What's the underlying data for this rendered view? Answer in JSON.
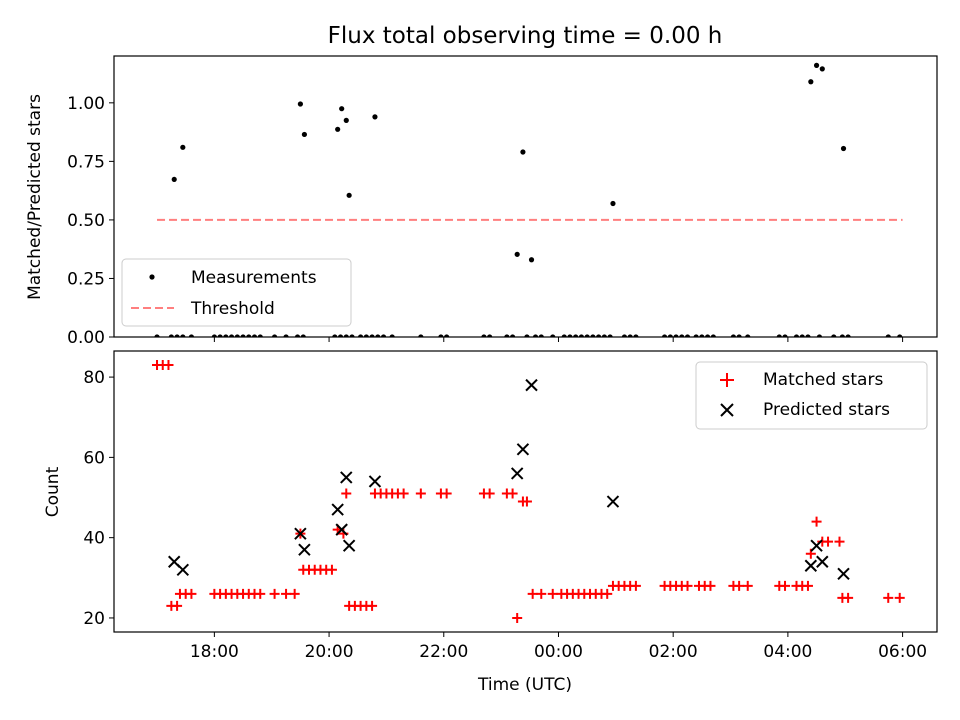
{
  "chart_data": [
    {
      "type": "scatter",
      "title": "Flux total observing time = 0.00 h",
      "xlabel": "",
      "ylabel": "Matched/Predicted stars",
      "x_unit": "hours since 00:00 UTC",
      "xlim": [
        -7.75,
        6.6
      ],
      "ylim": [
        0.0,
        1.2
      ],
      "yticks": [
        0.0,
        0.25,
        0.5,
        0.75,
        1.0
      ],
      "ytick_labels": [
        "0.00",
        "0.25",
        "0.50",
        "0.75",
        "1.00"
      ],
      "xticks": [
        -6,
        -4,
        -2,
        0,
        2,
        4,
        6
      ],
      "legend": {
        "position": "lower-left",
        "entries": [
          {
            "label": "Measurements",
            "marker": "dot",
            "color": "#000000"
          },
          {
            "label": "Threshold",
            "marker": "dashed-line",
            "color": "#ff7f7f"
          }
        ]
      },
      "series": [
        {
          "name": "Measurements",
          "color": "#000000",
          "points": [
            [
              -6.7,
              0.673
            ],
            [
              -6.55,
              0.81
            ],
            [
              -4.5,
              0.995
            ],
            [
              -4.43,
              0.865
            ],
            [
              -3.85,
              0.887
            ],
            [
              -3.78,
              0.975
            ],
            [
              -3.7,
              0.925
            ],
            [
              -3.65,
              0.605
            ],
            [
              -3.2,
              0.94
            ],
            [
              -0.72,
              0.353
            ],
            [
              -0.62,
              0.79
            ],
            [
              -0.47,
              0.33
            ],
            [
              0.95,
              0.57
            ],
            [
              4.4,
              1.09
            ],
            [
              4.5,
              1.16
            ],
            [
              4.6,
              1.145
            ],
            [
              4.97,
              0.805
            ],
            [
              -7.0,
              0
            ],
            [
              -6.75,
              0
            ],
            [
              -6.65,
              0
            ],
            [
              -6.55,
              0
            ],
            [
              -6.4,
              0
            ],
            [
              -6.0,
              0
            ],
            [
              -5.9,
              0
            ],
            [
              -5.8,
              0
            ],
            [
              -5.7,
              0
            ],
            [
              -5.6,
              0
            ],
            [
              -5.5,
              0
            ],
            [
              -5.4,
              0
            ],
            [
              -5.3,
              0
            ],
            [
              -5.2,
              0
            ],
            [
              -4.95,
              0
            ],
            [
              -4.75,
              0
            ],
            [
              -4.55,
              0
            ],
            [
              -4.45,
              0
            ],
            [
              -3.9,
              0
            ],
            [
              -3.8,
              0
            ],
            [
              -3.7,
              0
            ],
            [
              -3.6,
              0
            ],
            [
              -3.45,
              0
            ],
            [
              -3.35,
              0
            ],
            [
              -3.25,
              0
            ],
            [
              -3.15,
              0
            ],
            [
              -3.05,
              0
            ],
            [
              -2.9,
              0
            ],
            [
              -2.4,
              0
            ],
            [
              -2.05,
              0
            ],
            [
              -1.95,
              0
            ],
            [
              -1.3,
              0
            ],
            [
              -1.2,
              0
            ],
            [
              -0.9,
              0
            ],
            [
              -0.8,
              0
            ],
            [
              -0.55,
              0
            ],
            [
              -0.4,
              0
            ],
            [
              -0.3,
              0
            ],
            [
              -0.1,
              0
            ],
            [
              0.1,
              0
            ],
            [
              0.2,
              0
            ],
            [
              0.3,
              0
            ],
            [
              0.4,
              0
            ],
            [
              0.5,
              0
            ],
            [
              0.6,
              0
            ],
            [
              0.7,
              0
            ],
            [
              0.8,
              0
            ],
            [
              0.9,
              0
            ],
            [
              1.15,
              0
            ],
            [
              1.25,
              0
            ],
            [
              1.35,
              0
            ],
            [
              1.85,
              0
            ],
            [
              1.95,
              0
            ],
            [
              2.05,
              0
            ],
            [
              2.15,
              0
            ],
            [
              2.25,
              0
            ],
            [
              2.4,
              0
            ],
            [
              2.5,
              0
            ],
            [
              2.6,
              0
            ],
            [
              2.7,
              0
            ],
            [
              3.05,
              0
            ],
            [
              3.15,
              0
            ],
            [
              3.3,
              0
            ],
            [
              3.85,
              0
            ],
            [
              3.95,
              0
            ],
            [
              4.15,
              0
            ],
            [
              4.25,
              0
            ],
            [
              4.35,
              0
            ],
            [
              4.55,
              0
            ],
            [
              4.8,
              0
            ],
            [
              4.95,
              0
            ],
            [
              5.05,
              0
            ],
            [
              5.75,
              0
            ],
            [
              5.95,
              0
            ]
          ]
        }
      ],
      "threshold": {
        "name": "Threshold",
        "value": 0.5,
        "x_range": [
          -7.0,
          6.0
        ],
        "color": "#ff7f7f",
        "style": "dashed"
      }
    },
    {
      "type": "scatter",
      "title": "",
      "xlabel": "Time (UTC)",
      "ylabel": "Count",
      "x_unit": "hours since 00:00 UTC",
      "xlim": [
        -7.75,
        6.6
      ],
      "ylim": [
        16.5,
        86.5
      ],
      "yticks": [
        20,
        40,
        60,
        80
      ],
      "ytick_labels": [
        "20",
        "40",
        "60",
        "80"
      ],
      "xticks": [
        -6,
        -4,
        -2,
        0,
        2,
        4,
        6
      ],
      "xtick_labels": [
        "18:00",
        "20:00",
        "22:00",
        "00:00",
        "02:00",
        "04:00",
        "06:00"
      ],
      "legend": {
        "position": "top-right",
        "entries": [
          {
            "label": "Matched stars",
            "marker": "+",
            "color": "#ff0000"
          },
          {
            "label": "Predicted stars",
            "marker": "x",
            "color": "#000000"
          }
        ]
      },
      "series": [
        {
          "name": "Matched stars",
          "color": "#ff0000",
          "marker": "+",
          "points": [
            [
              -7.0,
              83
            ],
            [
              -6.9,
              83
            ],
            [
              -6.8,
              83
            ],
            [
              -6.75,
              23
            ],
            [
              -6.65,
              23
            ],
            [
              -6.6,
              26
            ],
            [
              -6.5,
              26
            ],
            [
              -6.4,
              26
            ],
            [
              -6.0,
              26
            ],
            [
              -5.9,
              26
            ],
            [
              -5.8,
              26
            ],
            [
              -5.7,
              26
            ],
            [
              -5.6,
              26
            ],
            [
              -5.5,
              26
            ],
            [
              -5.4,
              26
            ],
            [
              -5.3,
              26
            ],
            [
              -5.2,
              26
            ],
            [
              -4.95,
              26
            ],
            [
              -4.75,
              26
            ],
            [
              -4.6,
              26
            ],
            [
              -4.5,
              41
            ],
            [
              -4.45,
              32
            ],
            [
              -4.35,
              32
            ],
            [
              -4.25,
              32
            ],
            [
              -4.15,
              32
            ],
            [
              -4.05,
              32
            ],
            [
              -3.95,
              32
            ],
            [
              -3.85,
              42
            ],
            [
              -3.75,
              41
            ],
            [
              -3.7,
              51
            ],
            [
              -3.65,
              23
            ],
            [
              -3.55,
              23
            ],
            [
              -3.45,
              23
            ],
            [
              -3.35,
              23
            ],
            [
              -3.25,
              23
            ],
            [
              -3.2,
              51
            ],
            [
              -3.1,
              51
            ],
            [
              -3.0,
              51
            ],
            [
              -2.9,
              51
            ],
            [
              -2.8,
              51
            ],
            [
              -2.7,
              51
            ],
            [
              -2.4,
              51
            ],
            [
              -2.05,
              51
            ],
            [
              -1.95,
              51
            ],
            [
              -1.3,
              51
            ],
            [
              -1.2,
              51
            ],
            [
              -0.9,
              51
            ],
            [
              -0.8,
              51
            ],
            [
              -0.72,
              20
            ],
            [
              -0.62,
              49
            ],
            [
              -0.55,
              49
            ],
            [
              -0.45,
              26
            ],
            [
              -0.3,
              26
            ],
            [
              -0.1,
              26
            ],
            [
              0.05,
              26
            ],
            [
              0.15,
              26
            ],
            [
              0.25,
              26
            ],
            [
              0.35,
              26
            ],
            [
              0.45,
              26
            ],
            [
              0.55,
              26
            ],
            [
              0.65,
              26
            ],
            [
              0.75,
              26
            ],
            [
              0.85,
              26
            ],
            [
              0.95,
              28
            ],
            [
              1.05,
              28
            ],
            [
              1.15,
              28
            ],
            [
              1.25,
              28
            ],
            [
              1.35,
              28
            ],
            [
              1.85,
              28
            ],
            [
              1.95,
              28
            ],
            [
              2.05,
              28
            ],
            [
              2.15,
              28
            ],
            [
              2.25,
              28
            ],
            [
              2.45,
              28
            ],
            [
              2.55,
              28
            ],
            [
              2.65,
              28
            ],
            [
              3.05,
              28
            ],
            [
              3.15,
              28
            ],
            [
              3.3,
              28
            ],
            [
              3.85,
              28
            ],
            [
              3.95,
              28
            ],
            [
              4.15,
              28
            ],
            [
              4.25,
              28
            ],
            [
              4.35,
              28
            ],
            [
              4.4,
              36
            ],
            [
              4.5,
              44
            ],
            [
              4.6,
              39
            ],
            [
              4.7,
              39
            ],
            [
              4.9,
              39
            ],
            [
              4.95,
              25
            ],
            [
              5.05,
              25
            ],
            [
              5.75,
              25
            ],
            [
              5.95,
              25
            ]
          ]
        },
        {
          "name": "Predicted stars",
          "color": "#000000",
          "marker": "x",
          "points": [
            [
              -6.7,
              34
            ],
            [
              -6.55,
              32
            ],
            [
              -4.5,
              41
            ],
            [
              -4.43,
              37
            ],
            [
              -3.85,
              47
            ],
            [
              -3.78,
              42
            ],
            [
              -3.7,
              55
            ],
            [
              -3.65,
              38
            ],
            [
              -3.2,
              54
            ],
            [
              -0.72,
              56
            ],
            [
              -0.62,
              62
            ],
            [
              -0.47,
              78
            ],
            [
              0.95,
              49
            ],
            [
              4.4,
              33
            ],
            [
              4.5,
              38
            ],
            [
              4.6,
              34
            ],
            [
              4.97,
              31
            ]
          ]
        }
      ]
    }
  ]
}
